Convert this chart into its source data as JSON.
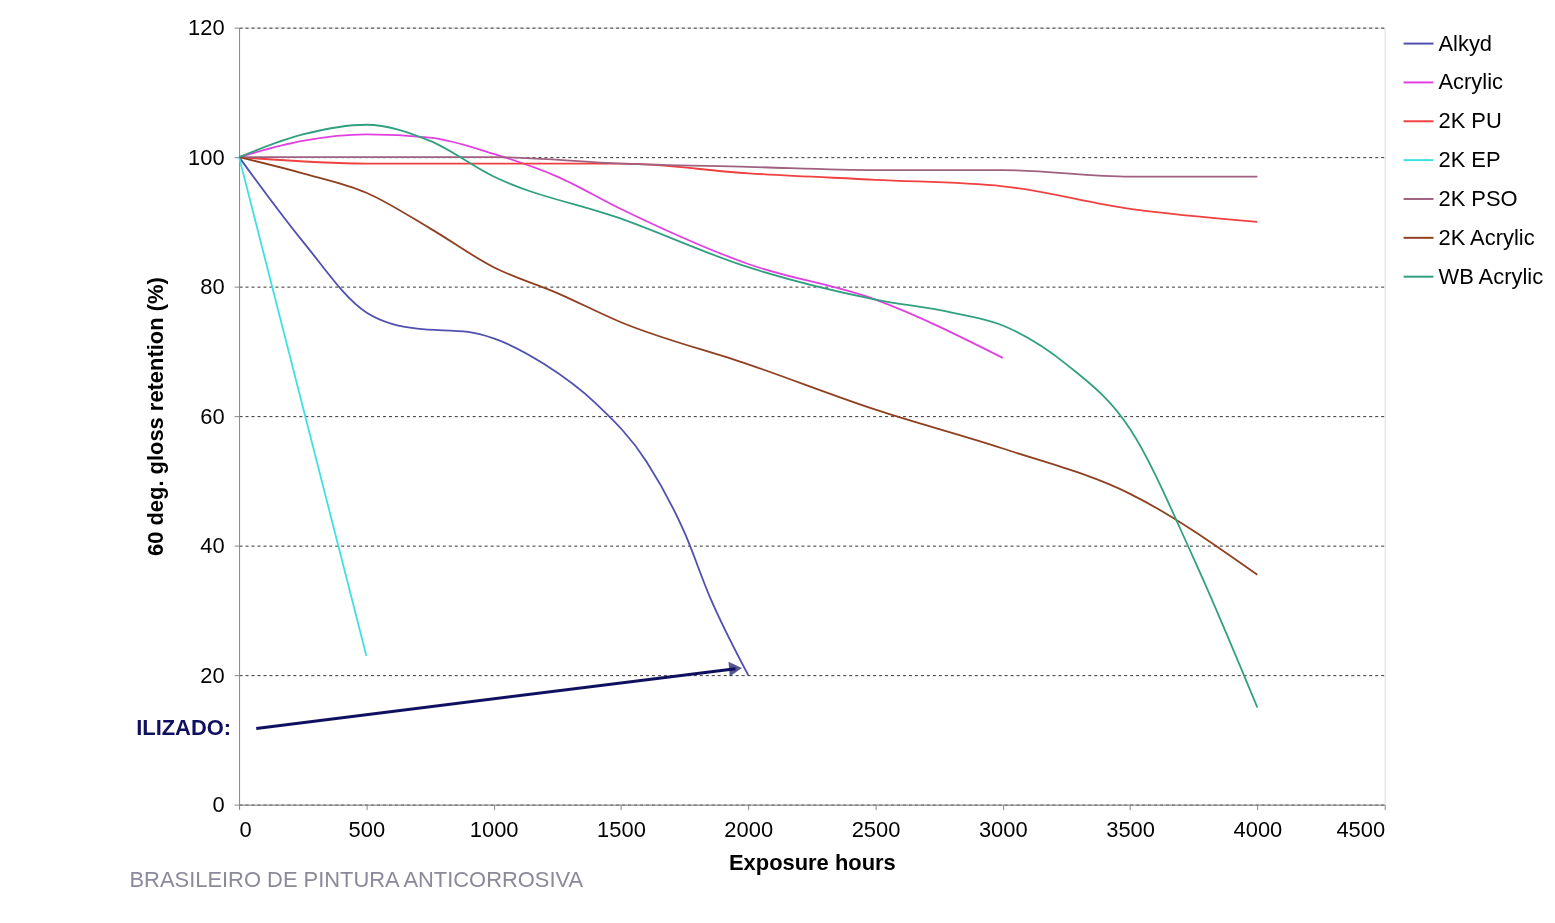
{
  "chart_data": {
    "type": "line",
    "xlabel": "Exposure hours",
    "ylabel": "60 deg. gloss retention (%)",
    "xlim": [
      0,
      4500
    ],
    "xticks": [
      0,
      500,
      1000,
      1500,
      2000,
      2500,
      3000,
      3500,
      4000,
      4500
    ],
    "ylim": [
      0,
      120
    ],
    "yticks": [
      0,
      20,
      40,
      60,
      80,
      100,
      120
    ],
    "grid": "y",
    "legend": "right",
    "marker": "none",
    "line_style": "solid",
    "annotations": [
      {
        "text": "ILIZADO:",
        "x": 1950,
        "y": 21
      },
      "BRASILEIRO DE PINTURA ANTICORROSIVA"
    ],
    "series": [
      {
        "name": "Alkyd",
        "color": "#5050b0",
        "x": [
          0,
          250,
          500,
          700,
          900,
          1000,
          1200,
          1400,
          1600,
          1750,
          1850,
          2000
        ],
        "values": [
          100,
          87,
          76,
          73.5,
          73,
          72,
          68,
          62,
          53,
          42,
          32,
          20
        ]
      },
      {
        "name": "Acrylic",
        "color": "#e040e0",
        "x": [
          0,
          250,
          500,
          750,
          1000,
          1250,
          1500,
          2000,
          2500,
          3000
        ],
        "values": [
          100,
          102.5,
          103.5,
          103,
          100.5,
          97,
          92,
          83.5,
          78,
          69
        ]
      },
      {
        "name": "2K PU",
        "color": "#f04040",
        "x": [
          0,
          500,
          1000,
          1500,
          2000,
          2500,
          3000,
          3500,
          4000
        ],
        "values": [
          100,
          99,
          99,
          99,
          97.5,
          96.5,
          95.5,
          92,
          90
        ]
      },
      {
        "name": "2K EP",
        "color": "#40e0e0",
        "x": [
          0,
          500
        ],
        "values": [
          100,
          23
        ]
      },
      {
        "name": "2K PSO",
        "color": "#a06080",
        "x": [
          0,
          1000,
          1500,
          2000,
          2500,
          3000,
          3500,
          4000
        ],
        "values": [
          100,
          100,
          99,
          98.5,
          98,
          98,
          97,
          97
        ]
      },
      {
        "name": "2K Acrylic",
        "color": "#904020",
        "x": [
          0,
          250,
          500,
          750,
          1000,
          1250,
          1500,
          2000,
          2500,
          3000,
          3500,
          4000
        ],
        "values": [
          100,
          97.5,
          94.5,
          89,
          83,
          79,
          74.5,
          68,
          61,
          55,
          48,
          35.5
        ]
      },
      {
        "name": "WB Acrylic",
        "color": "#30a080",
        "x": [
          0,
          250,
          500,
          750,
          1000,
          1500,
          2000,
          2500,
          2800,
          3000,
          3250,
          3500,
          3750,
          4000
        ],
        "values": [
          100,
          103.5,
          105,
          102.5,
          97,
          90.5,
          83,
          78,
          76,
          74,
          68,
          58,
          38,
          15
        ]
      }
    ]
  }
}
